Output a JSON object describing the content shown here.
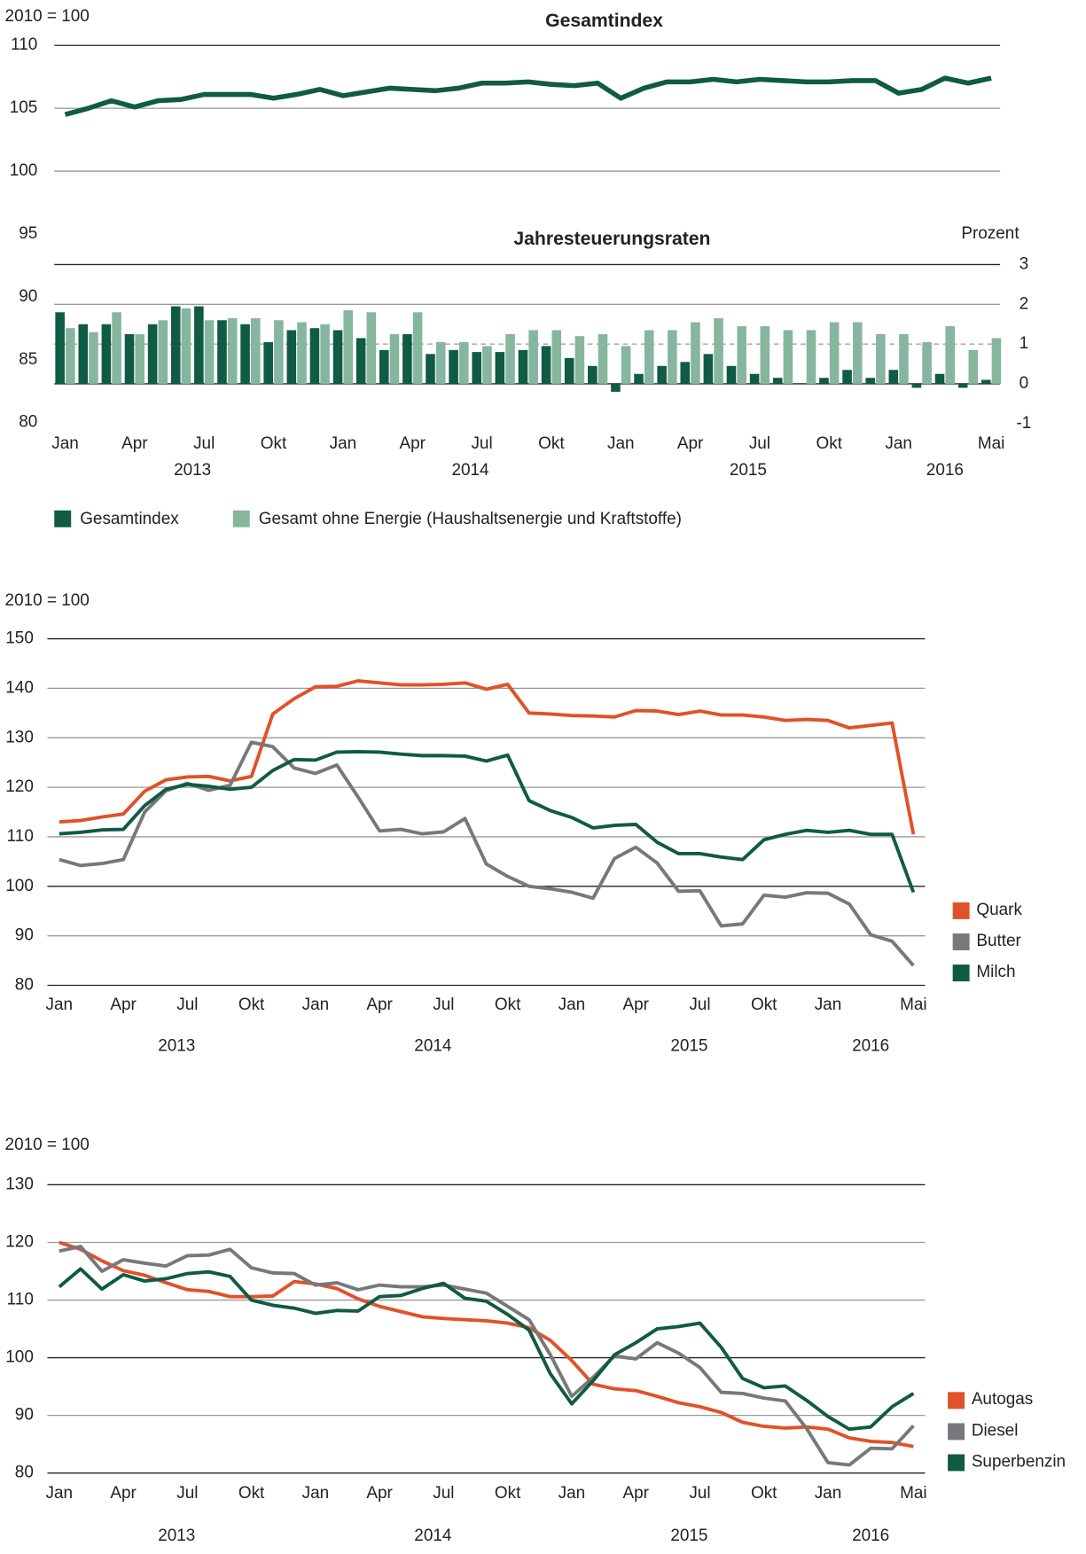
{
  "chart_data": [
    {
      "type": "line",
      "title": "Gesamtindex",
      "y_label": "2010 = 100",
      "color": "#0f5b43",
      "ylim": [
        80,
        110
      ],
      "yticks": [
        80,
        85,
        90,
        95,
        100,
        105,
        110
      ],
      "values": [
        104.5,
        105.0,
        105.6,
        105.1,
        105.6,
        105.7,
        106.1,
        106.1,
        106.1,
        105.8,
        106.1,
        106.5,
        106.0,
        106.3,
        106.6,
        106.5,
        106.4,
        106.6,
        107.0,
        107.0,
        107.1,
        106.9,
        106.8,
        107.0,
        105.8,
        106.6,
        107.1,
        107.1,
        107.3,
        107.1,
        107.3,
        107.2,
        107.1,
        107.1,
        107.2,
        107.2,
        106.2,
        106.5,
        107.4,
        107.0,
        107.4
      ]
    },
    {
      "type": "bar",
      "title": "Jahresteuerungsraten",
      "y_label": "Prozent",
      "ylim": [
        -1,
        3
      ],
      "yticks": [
        -1,
        0,
        1,
        2,
        3
      ],
      "categories": [
        "Jan",
        null,
        null,
        "Apr",
        null,
        null,
        "Jul",
        null,
        null,
        "Okt",
        null,
        null,
        "Jan",
        null,
        null,
        "Apr",
        null,
        null,
        "Jul",
        null,
        null,
        "Okt",
        null,
        null,
        "Jan",
        null,
        null,
        "Apr",
        null,
        null,
        "Jul",
        null,
        null,
        "Okt",
        null,
        null,
        "Jan",
        null,
        null,
        null,
        "Mai"
      ],
      "years": [
        "2013",
        "2014",
        "2015",
        "2016"
      ],
      "series": [
        {
          "name": "Gesamtindex",
          "color": "#0f5b43",
          "values": [
            1.8,
            1.5,
            1.5,
            1.25,
            1.5,
            1.95,
            1.95,
            1.6,
            1.5,
            1.05,
            1.35,
            1.4,
            1.35,
            1.15,
            0.85,
            1.25,
            0.75,
            0.85,
            0.8,
            0.8,
            0.85,
            0.95,
            0.65,
            0.45,
            -0.2,
            0.25,
            0.45,
            0.55,
            0.75,
            0.45,
            0.25,
            0.15,
            0.0,
            0.15,
            0.35,
            0.15,
            0.35,
            -0.1,
            0.25,
            -0.1,
            0.1
          ]
        },
        {
          "name": "Gesamt ohne Energie (Haushaltsenergie und Kraftstoffe)",
          "color": "#86b6a0",
          "values": [
            1.4,
            1.3,
            1.8,
            1.25,
            1.6,
            1.9,
            1.6,
            1.65,
            1.65,
            1.6,
            1.55,
            1.5,
            1.85,
            1.8,
            1.25,
            1.8,
            1.05,
            1.05,
            0.95,
            1.25,
            1.35,
            1.35,
            1.2,
            1.25,
            0.95,
            1.35,
            1.35,
            1.55,
            1.65,
            1.45,
            1.45,
            1.35,
            1.35,
            1.55,
            1.55,
            1.25,
            1.25,
            1.05,
            1.45,
            0.85,
            1.15
          ]
        }
      ]
    },
    {
      "type": "line",
      "y_label": "2010 = 100",
      "ylim": [
        80,
        150
      ],
      "yticks": [
        80,
        90,
        100,
        110,
        120,
        130,
        140,
        150
      ],
      "baseline": 100,
      "categories": [
        "Jan",
        null,
        null,
        "Apr",
        null,
        null,
        "Jul",
        null,
        null,
        "Okt",
        null,
        null,
        "Jan",
        null,
        null,
        "Apr",
        null,
        null,
        "Jul",
        null,
        null,
        "Okt",
        null,
        null,
        "Jan",
        null,
        null,
        "Apr",
        null,
        null,
        "Jul",
        null,
        null,
        "Okt",
        null,
        null,
        "Jan",
        null,
        null,
        null,
        "Mai"
      ],
      "years": [
        "2013",
        "2014",
        "2015",
        "2016"
      ],
      "series": [
        {
          "name": "Quark",
          "color": "#e0522a",
          "values": [
            113,
            113.3,
            114,
            114.6,
            119.2,
            121.5,
            122.1,
            122.2,
            121.3,
            122.2,
            134.8,
            137.9,
            140.3,
            140.4,
            141.5,
            141.1,
            140.7,
            140.7,
            140.8,
            141.1,
            139.8,
            140.8,
            135,
            134.8,
            134.5,
            134.4,
            134.2,
            135.5,
            135.4,
            134.7,
            135.4,
            134.6,
            134.6,
            134.2,
            133.5,
            133.7,
            133.5,
            132,
            132.5,
            133,
            110.5
          ]
        },
        {
          "name": "Butter",
          "color": "#77787b",
          "values": [
            105.4,
            104.2,
            104.6,
            105.4,
            115,
            119.3,
            120.8,
            119.4,
            120.4,
            129.1,
            128.2,
            123.9,
            122.8,
            124.5,
            118,
            111.2,
            111.5,
            110.6,
            111,
            113.7,
            104.5,
            102,
            100,
            99.5,
            98.8,
            97.6,
            105.6,
            107.9,
            104.7,
            99,
            99.1,
            92,
            92.4,
            98.2,
            97.8,
            98.7,
            98.6,
            96.4,
            90.2,
            88.9,
            84
          ]
        },
        {
          "name": "Milch",
          "color": "#0f5b43",
          "values": [
            110.6,
            110.9,
            111.4,
            111.5,
            116.3,
            119.6,
            120.6,
            120.2,
            119.6,
            120,
            123.4,
            125.6,
            125.5,
            127.1,
            127.2,
            127.1,
            126.7,
            126.4,
            126.4,
            126.3,
            125.3,
            126.5,
            117.3,
            115.3,
            113.9,
            111.8,
            112.3,
            112.5,
            108.9,
            106.6,
            106.6,
            105.9,
            105.4,
            109.4,
            110.5,
            111.3,
            110.9,
            111.3,
            110.5,
            110.5,
            98.8
          ]
        }
      ]
    },
    {
      "type": "line",
      "y_label": "2010 = 100",
      "ylim": [
        80,
        130
      ],
      "yticks": [
        80,
        90,
        100,
        110,
        120,
        130
      ],
      "baseline": 100,
      "categories": [
        "Jan",
        null,
        null,
        "Apr",
        null,
        null,
        "Jul",
        null,
        null,
        "Okt",
        null,
        null,
        "Jan",
        null,
        null,
        "Apr",
        null,
        null,
        "Jul",
        null,
        null,
        "Okt",
        null,
        null,
        "Jan",
        null,
        null,
        "Apr",
        null,
        null,
        "Jul",
        null,
        null,
        "Okt",
        null,
        null,
        "Jan",
        null,
        null,
        null,
        "Mai"
      ],
      "years": [
        "2013",
        "2014",
        "2015",
        "2016"
      ],
      "series": [
        {
          "name": "Autogas",
          "color": "#e0522a",
          "values": [
            120,
            118.8,
            116.8,
            115.1,
            114.3,
            113,
            111.8,
            111.5,
            110.6,
            110.6,
            110.7,
            113.2,
            112.8,
            112,
            110.2,
            108.9,
            108,
            107.1,
            106.8,
            106.6,
            106.4,
            106,
            105.2,
            103,
            99.5,
            95.4,
            94.6,
            94.3,
            93.3,
            92.2,
            91.5,
            90.5,
            88.8,
            88.1,
            87.8,
            88,
            87.6,
            86.1,
            85.5,
            85.3,
            84.6
          ]
        },
        {
          "name": "Diesel",
          "color": "#77787b",
          "values": [
            118.5,
            119.3,
            115,
            117,
            116.4,
            115.9,
            117.7,
            117.8,
            118.8,
            115.6,
            114.7,
            114.6,
            112.6,
            113,
            111.8,
            112.6,
            112.3,
            112.3,
            112.6,
            111.9,
            111.2,
            108.9,
            106.6,
            100.5,
            93.3,
            96.6,
            100.3,
            99.8,
            102.6,
            100.8,
            98.3,
            94,
            93.8,
            93,
            92.5,
            87.7,
            81.8,
            81.4,
            84.3,
            84.2,
            88.2
          ]
        },
        {
          "name": "Superbenzin",
          "color": "#0f5b43",
          "values": [
            112.3,
            115.4,
            111.9,
            114.4,
            113.3,
            113.7,
            114.6,
            114.9,
            114.1,
            110,
            109.1,
            108.6,
            107.7,
            108.2,
            108.1,
            110.6,
            110.8,
            112,
            112.9,
            110.3,
            109.8,
            107.5,
            104.8,
            97.2,
            92,
            96,
            100.5,
            102.6,
            105,
            105.4,
            106,
            101.8,
            96.4,
            94.8,
            95.1,
            92.6,
            89.8,
            87.6,
            88,
            91.5,
            93.8
          ]
        }
      ]
    }
  ]
}
